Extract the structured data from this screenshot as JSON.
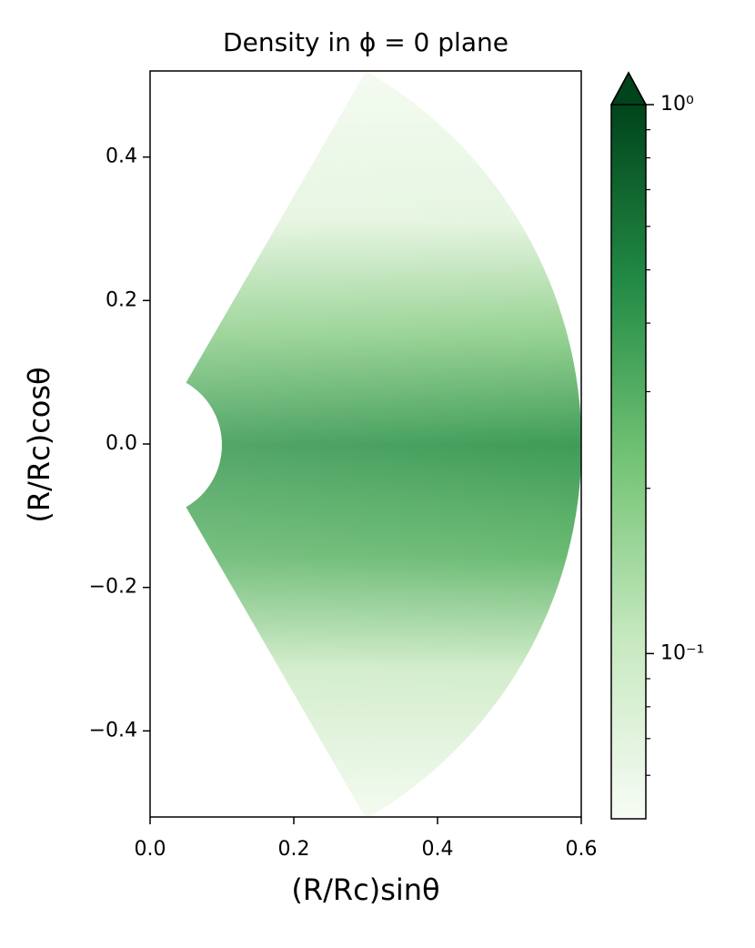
{
  "chart_data": {
    "type": "polar-wedge-image",
    "title": "Density in ϕ = 0 plane",
    "xlabel": "(R/Rc)sinθ",
    "ylabel": "(R/Rc)cosθ",
    "xlim": [
      0,
      0.6
    ],
    "ylim": [
      -0.52,
      0.52
    ],
    "xticks": [
      {
        "value": 0,
        "label": "0.0"
      },
      0.2,
      0.4,
      0.6
    ],
    "yticks": [
      {
        "value": -0.4,
        "label": "−0.4"
      },
      {
        "value": -0.2,
        "label": "−0.2"
      },
      {
        "value": 0,
        "label": "0.0"
      },
      0.2,
      0.4
    ],
    "colorbar": {
      "scale": "log",
      "lim": [
        0.05,
        1
      ],
      "extend": "max",
      "colors": [
        "#f7fcf5",
        "#c7e9c0",
        "#74c476",
        "#238b45",
        "#00441b"
      ],
      "ticks": [
        {
          "value": 0.1,
          "label": "10⁻¹"
        },
        {
          "value": 1,
          "label": "10⁰"
        }
      ],
      "minor_ticks": [
        0.06,
        0.07,
        0.08,
        0.09,
        0.2,
        0.3,
        0.4,
        0.5,
        0.6,
        0.7,
        0.8,
        0.9
      ]
    }
  }
}
